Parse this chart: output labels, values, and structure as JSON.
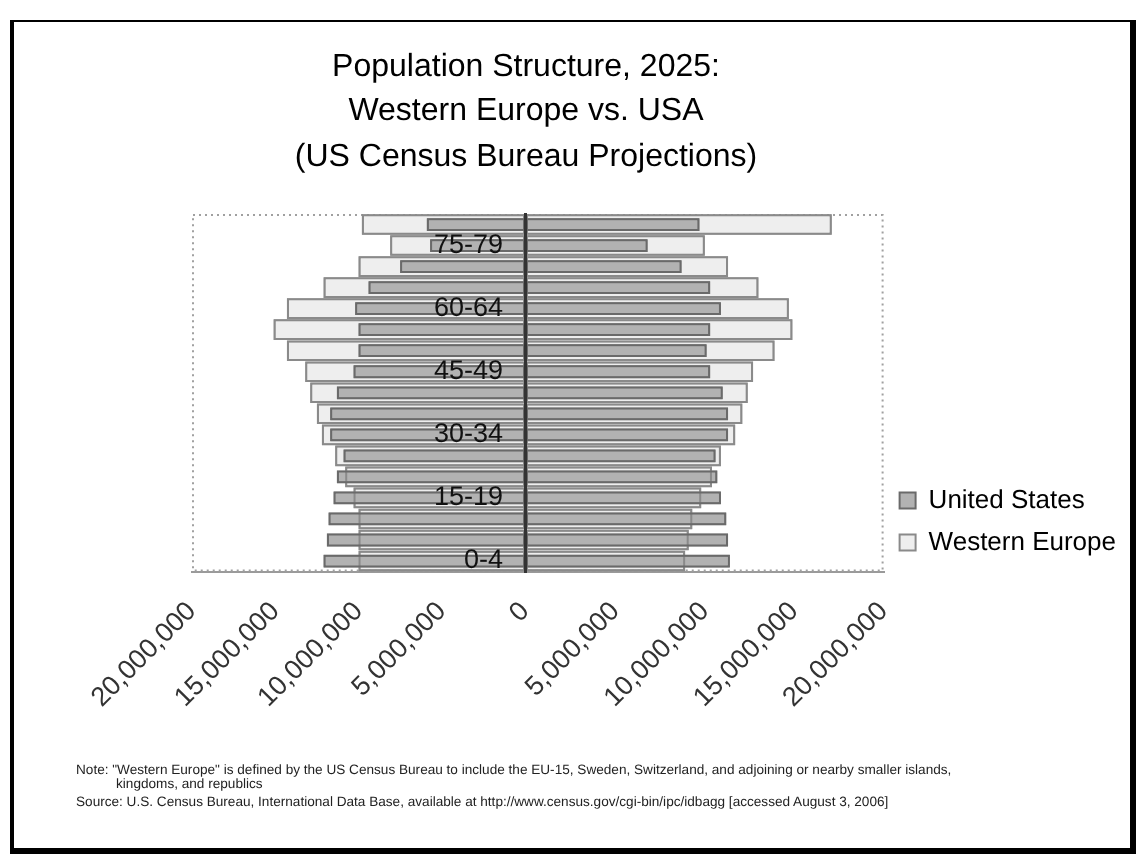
{
  "chart_data": [
    {
      "type": "bar",
      "orientation": "horizontal",
      "title": "Population Structure, 2025:\nWestern Europe vs. USA\n(US Census Bureau Projections)",
      "categories": [
        null,
        "75-79",
        null,
        null,
        "60-64",
        null,
        null,
        "45-49",
        null,
        null,
        "30-34",
        null,
        null,
        "15-19",
        null,
        null,
        "0-4"
      ],
      "series": [
        {
          "color": "#b2b2b2",
          "values": [
            5900000,
            5700000,
            7500000,
            9400000,
            10200000,
            10000000,
            10000000,
            10300000,
            11300000,
            11700000,
            11700000,
            10900000,
            11300000,
            11500000,
            11800000,
            11900000,
            12100000
          ]
        },
        {
          "color": "#eeeeee",
          "values": [
            9800000,
            8100000,
            10000000,
            12100000,
            14300000,
            15100000,
            14300000,
            13200000,
            12900000,
            12500000,
            12200000,
            11400000,
            10800000,
            10300000,
            10000000,
            10000000,
            10000000
          ]
        }
      ],
      "xlim": [
        20000000,
        0
      ],
      "xticks": [
        {
          "value": 20000000,
          "label": "20,000,000"
        },
        {
          "value": 15000000,
          "label": "15,000,000"
        },
        {
          "value": 10000000,
          "label": "10,000,000"
        },
        {
          "value": 5000000,
          "label": "5,000,000"
        },
        0
      ]
    },
    {
      "type": "bar",
      "orientation": "horizontal",
      "categories": [
        null,
        null,
        null,
        null,
        null,
        null,
        null,
        null,
        null,
        null,
        null,
        null,
        null,
        null,
        null,
        null,
        null
      ],
      "series": [
        {
          "name": "United States",
          "color": "#b2b2b2",
          "values": [
            9700000,
            6800000,
            8700000,
            10300000,
            10900000,
            10300000,
            10100000,
            10300000,
            11000000,
            11300000,
            11300000,
            10600000,
            10700000,
            10900000,
            11200000,
            11300000,
            11400000
          ]
        },
        {
          "name": "Western Europe",
          "color": "#eeeeee",
          "values": [
            17100000,
            10000000,
            11300000,
            13000000,
            14700000,
            14900000,
            13900000,
            12700000,
            12400000,
            12100000,
            11700000,
            10900000,
            10400000,
            9800000,
            9300000,
            9100000,
            8900000
          ]
        }
      ],
      "xlim": [
        0,
        20000000
      ],
      "xticks": [
        {
          "value": 5000000,
          "label": "5,000,000"
        },
        {
          "value": 10000000,
          "label": "10,000,000"
        },
        {
          "value": 15000000,
          "label": "15,000,000"
        },
        {
          "value": 20000000,
          "label": "20,000,000"
        }
      ],
      "legend": "right",
      "annotations": [
        "Note: \"Western Europe\" is defined by the US Census Bureau to include the EU-15, Sweden, Switzerland, and adjoining or nearby smaller islands, kingdoms, and republics",
        "Source: U.S. Census Bureau, International Data Base, available at http://www.census.gov/cgi-bin/ipc/idbagg [accessed August 3, 2006]"
      ]
    }
  ]
}
